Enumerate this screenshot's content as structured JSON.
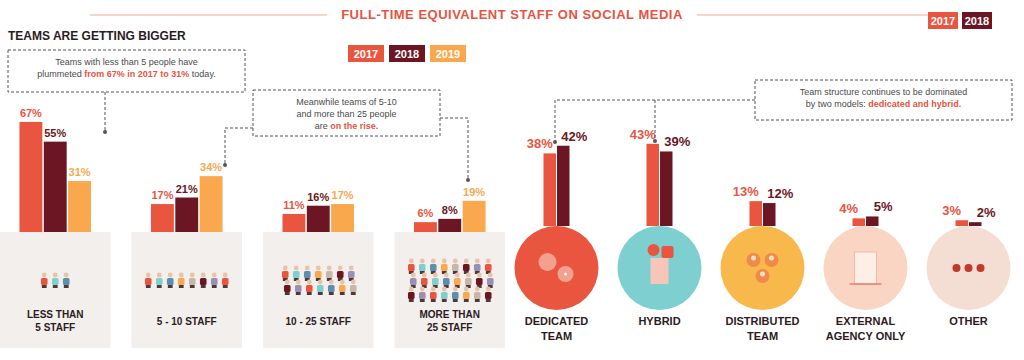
{
  "header": {
    "title": "FULL-TIME EQUIVALENT STAFF ON SOCIAL MEDIA"
  },
  "chart_data": [
    {
      "type": "bar",
      "title": "TEAMS ARE GETTING BIGGER",
      "categories": [
        "LESS THAN\n5 STAFF",
        "5 - 10 STAFF",
        "10 - 25 STAFF",
        "MORE THAN\n25 STAFF"
      ],
      "series": [
        {
          "name": "2017",
          "color": "#e9553f",
          "values": [
            67,
            17,
            11,
            6
          ],
          "value_labels": [
            "67%",
            "17%",
            "11%",
            "6%"
          ]
        },
        {
          "name": "2018",
          "color": "#6b1622",
          "values": [
            55,
            21,
            16,
            8
          ],
          "value_labels": [
            "55%",
            "21%",
            "16%",
            "8%"
          ]
        },
        {
          "name": "2019",
          "color": "#f9a84d",
          "values": [
            31,
            34,
            17,
            19
          ],
          "value_labels": [
            "31%",
            "34%",
            "17%",
            "19%"
          ]
        }
      ],
      "ylim": [
        0,
        70
      ],
      "tick_labels": false,
      "data_labels": true,
      "legend": "top-right",
      "annotations": [
        {
          "lines": [
            "Teams with less than 5 people have",
            "plummeted from 67% in 2017 to 31% today."
          ],
          "highlight": "from 67% in 2017 to 31%"
        },
        {
          "lines": [
            "Meanwhile teams of 5-10",
            "and more than 25 people",
            "are on the rise."
          ],
          "highlight": "on the rise."
        }
      ]
    },
    {
      "type": "bar",
      "categories": [
        "DEDICATED\nTEAM",
        "HYBRID",
        "DISTRIBUTED\nTEAM",
        "EXTERNAL\nAGENCY ONLY",
        "OTHER"
      ],
      "series": [
        {
          "name": "2017",
          "color": "#e9553f",
          "values": [
            38,
            43,
            13,
            4,
            3
          ],
          "value_labels": [
            "38%",
            "43%",
            "13%",
            "4%",
            "3%"
          ]
        },
        {
          "name": "2018",
          "color": "#6b1622",
          "values": [
            42,
            39,
            12,
            5,
            2
          ],
          "value_labels": [
            "42%",
            "39%",
            "12%",
            "5%",
            "2%"
          ]
        }
      ],
      "ylim": [
        0,
        45
      ],
      "tick_labels": false,
      "data_labels": true,
      "legend": "top-right",
      "annotations": [
        {
          "lines": [
            "Team structure continues to be dominated",
            "by two models: dedicated and hybrid."
          ],
          "highlight": "dedicated and hybrid."
        }
      ]
    }
  ]
}
